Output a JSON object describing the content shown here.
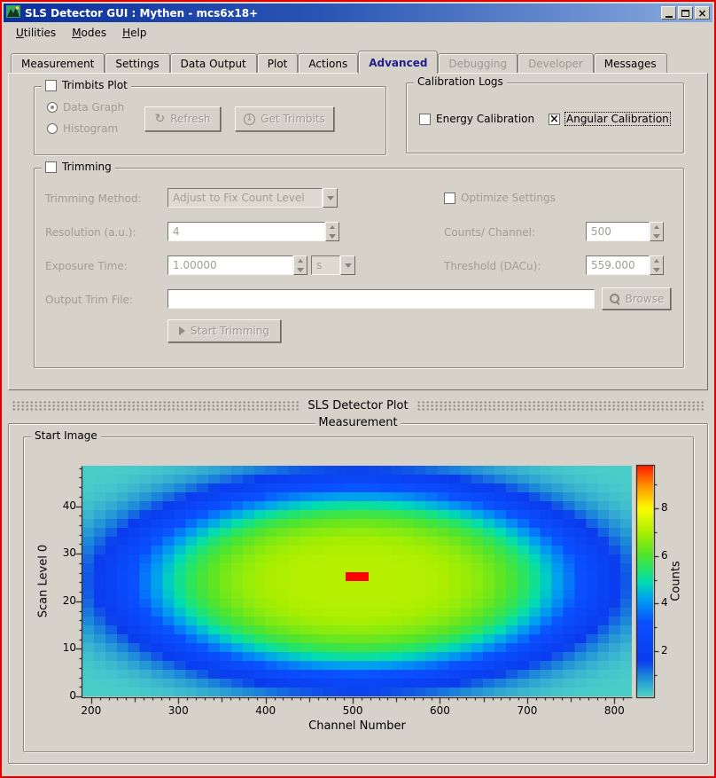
{
  "window": {
    "title": "SLS Detector GUI : Mythen - mcs6x18+",
    "close_glyph": "×"
  },
  "menu": {
    "items": [
      {
        "accel": "U",
        "rest": "tilities"
      },
      {
        "accel": "M",
        "rest": "odes"
      },
      {
        "accel": "H",
        "rest": "elp"
      }
    ]
  },
  "tabs": [
    {
      "label": "Measurement"
    },
    {
      "label": "Settings"
    },
    {
      "label": "Data Output"
    },
    {
      "label": "Plot"
    },
    {
      "label": "Actions"
    },
    {
      "label": "Advanced"
    },
    {
      "label": "Debugging"
    },
    {
      "label": "Developer"
    },
    {
      "label": "Messages"
    }
  ],
  "trimbits": {
    "title": "Trimbits Plot",
    "data_graph": "Data Graph",
    "histogram": "Histogram",
    "refresh": "Refresh",
    "get_trimbits": "Get Trimbits"
  },
  "calibration": {
    "title": "Calibration Logs",
    "energy": "Energy Calibration",
    "angular": "Angular Calibration"
  },
  "trimming": {
    "title": "Trimming",
    "method_label": "Trimming Method:",
    "method_value": "Adjust to Fix Count Level",
    "optimize": "Optimize Settings",
    "resolution_label": "Resolution (a.u.):",
    "resolution_value": "4",
    "counts_label": "Counts/ Channel:",
    "counts_value": "500",
    "exposure_label": "Exposure Time:",
    "exposure_value": "1.00000",
    "exposure_unit": "s",
    "threshold_label": "Threshold (DACu):",
    "threshold_value": "559.000",
    "output_label": "Output Trim File:",
    "output_value": "",
    "browse": "Browse",
    "start": "Start Trimming"
  },
  "dock": {
    "title": "SLS Detector Plot"
  },
  "measurement": {
    "title": "Measurement",
    "start_image": "Start Image"
  },
  "icons": {
    "refresh": "↻",
    "down_arrow": "↓",
    "check_x": "×"
  },
  "chart_data": {
    "type": "heatmap",
    "xlabel": "Channel Number",
    "ylabel": "Scan Level 0",
    "colorbar_label": "Counts",
    "x_range": [
      190,
      820
    ],
    "y_range": [
      0,
      48.5
    ],
    "x_major_ticks": [
      200,
      300,
      400,
      500,
      600,
      700,
      800
    ],
    "y_major_ticks": [
      0,
      10,
      20,
      30,
      40
    ],
    "colorbar_major_ticks": [
      2,
      4,
      6,
      8
    ],
    "colorbar_range": [
      0.1,
      9.8
    ],
    "x_minor_step": 10,
    "y_minor_step": 2,
    "colorbar_minor_step": 1,
    "grid": {
      "cols": 48,
      "rows": 26
    },
    "field": {
      "type": "super-gaussian",
      "cx": 505,
      "cy": 24.25,
      "amplitude": 7.0,
      "base": 0.15,
      "falloff": 1.9
    },
    "hot_spot": {
      "x": 505,
      "y": 24.3,
      "half_width": 14,
      "half_height": 0.9,
      "value": 10
    },
    "colormap": [
      [
        0.0,
        "#55dcc6"
      ],
      [
        0.9,
        "#1e8cd8"
      ],
      [
        1.6,
        "#0a3cee"
      ],
      [
        3.2,
        "#0a50ff"
      ],
      [
        4.2,
        "#00a0f0"
      ],
      [
        4.9,
        "#00dcb4"
      ],
      [
        5.5,
        "#28e464"
      ],
      [
        6.1,
        "#55e428"
      ],
      [
        7.0,
        "#aaee00"
      ],
      [
        8.0,
        "#fcfc00"
      ],
      [
        8.9,
        "#ff9800"
      ],
      [
        9.7,
        "#ff2a00"
      ],
      [
        10.0,
        "#ff0000"
      ]
    ]
  }
}
